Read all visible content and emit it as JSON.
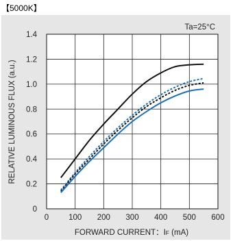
{
  "header": {
    "label": "【5000K】"
  },
  "chart_data": {
    "type": "line",
    "title": "",
    "annotation": "Ta=25°C",
    "xlabel": "FORWARD CURRENT：Iʀ (mA)",
    "ylabel": "RELATIVE LUMINOUS FLUX (a.u.)",
    "xlim": [
      0,
      600
    ],
    "ylim": [
      0,
      1.4
    ],
    "xticks": [
      "0",
      "100",
      "200",
      "300",
      "400",
      "500",
      "600"
    ],
    "yticks": [
      "0",
      "0.2",
      "0.4",
      "0.6",
      "0.8",
      "1.0",
      "1.2",
      "1.4"
    ],
    "grid": true,
    "series": [
      {
        "color": "#111111",
        "dash": "solid",
        "x": [
          50,
          100,
          150,
          200,
          250,
          300,
          350,
          400,
          450,
          500,
          550
        ],
        "y": [
          0.25,
          0.4,
          0.55,
          0.68,
          0.8,
          0.92,
          1.02,
          1.09,
          1.14,
          1.155,
          1.16
        ]
      },
      {
        "color": "#1f6fb4",
        "dash": "dotted",
        "x": [
          50,
          100,
          150,
          200,
          250,
          300,
          350,
          400,
          450,
          500,
          550
        ],
        "y": [
          0.15,
          0.29,
          0.42,
          0.54,
          0.65,
          0.75,
          0.84,
          0.915,
          0.975,
          1.02,
          1.045
        ]
      },
      {
        "color": "#111111",
        "dash": "dotted",
        "x": [
          50,
          100,
          150,
          200,
          250,
          300,
          350,
          400,
          450,
          500,
          550
        ],
        "y": [
          0.14,
          0.28,
          0.4,
          0.52,
          0.63,
          0.73,
          0.82,
          0.89,
          0.95,
          0.99,
          1.01
        ]
      },
      {
        "color": "#1f6fb4",
        "dash": "solid",
        "x": [
          50,
          100,
          150,
          200,
          250,
          300,
          350,
          400,
          450,
          500,
          550
        ],
        "y": [
          0.13,
          0.26,
          0.38,
          0.49,
          0.6,
          0.7,
          0.78,
          0.85,
          0.905,
          0.945,
          0.96
        ]
      }
    ]
  }
}
